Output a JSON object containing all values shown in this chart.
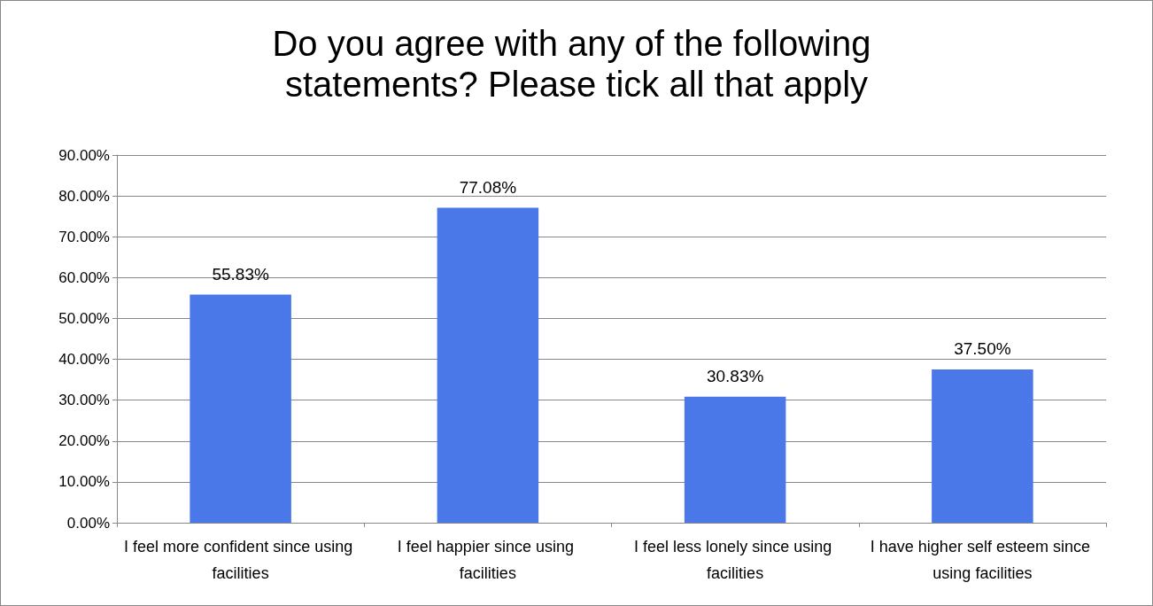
{
  "chart_data": {
    "type": "bar",
    "title": "Do you agree with any of the following statements? Please tick all that apply",
    "categories": [
      "I feel more confident since using facilities",
      "I feel happier since using facilities",
      "I feel less lonely since using facilities",
      "I have higher self esteem since using facilities"
    ],
    "values": [
      55.83,
      77.08,
      30.83,
      37.5
    ],
    "value_labels": [
      "55.83%",
      "77.08%",
      "30.83%",
      "37.50%"
    ],
    "color": "#4a78e8",
    "ylim": [
      0,
      90
    ],
    "yticks": [
      {
        "value": 0,
        "label": "0.00%"
      },
      {
        "value": 10,
        "label": "10.00%"
      },
      {
        "value": 20,
        "label": "20.00%"
      },
      {
        "value": 30,
        "label": "30.00%"
      },
      {
        "value": 40,
        "label": "40.00%"
      },
      {
        "value": 50,
        "label": "50.00%"
      },
      {
        "value": 60,
        "label": "60.00%"
      },
      {
        "value": 70,
        "label": "70.00%"
      },
      {
        "value": 80,
        "label": "80.00%"
      },
      {
        "value": 90,
        "label": "90.00%"
      }
    ],
    "grid": true
  }
}
